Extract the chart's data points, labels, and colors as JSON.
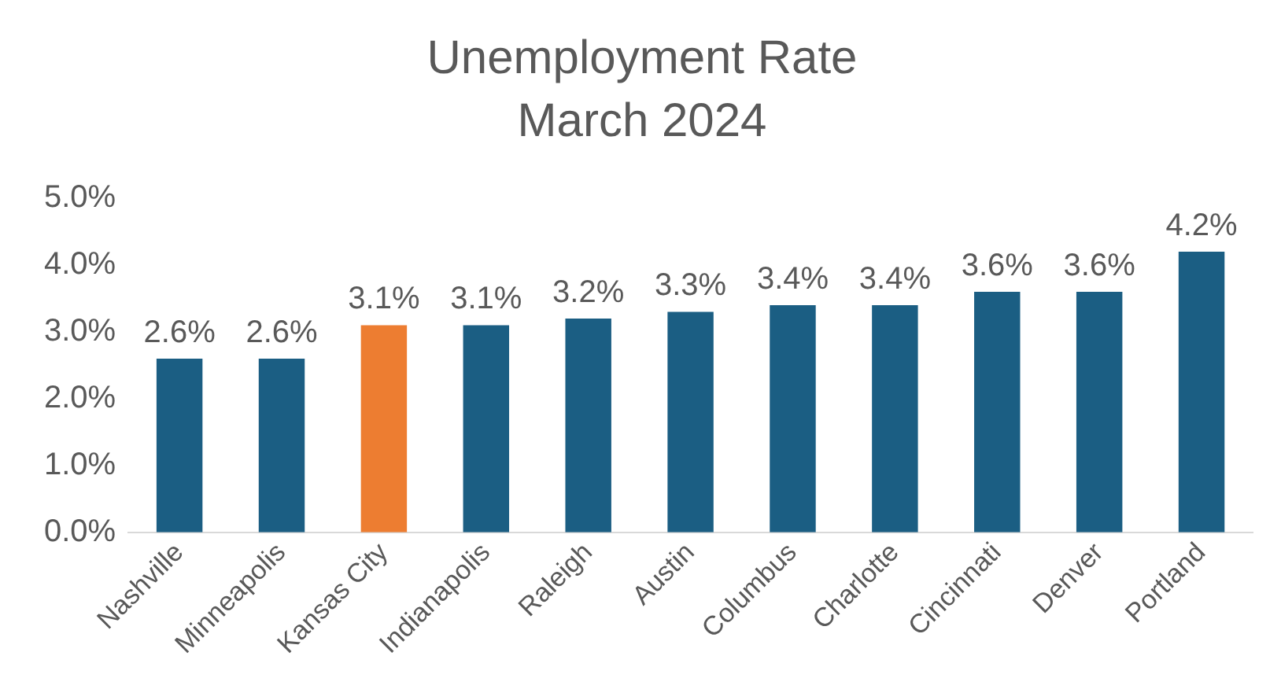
{
  "chart_data": {
    "type": "bar",
    "title": "Unemployment Rate",
    "subtitle": "March 2024",
    "categories": [
      "Nashville",
      "Minneapolis",
      "Kansas City",
      "Indianapolis",
      "Raleigh",
      "Austin",
      "Columbus",
      "Charlotte",
      "Cincinnati",
      "Denver",
      "Portland"
    ],
    "values": [
      2.6,
      2.6,
      3.1,
      3.1,
      3.2,
      3.3,
      3.4,
      3.4,
      3.6,
      3.6,
      4.2
    ],
    "colors": [
      "#1b5e83",
      "#1b5e83",
      "#ed7d31",
      "#1b5e83",
      "#1b5e83",
      "#1b5e83",
      "#1b5e83",
      "#1b5e83",
      "#1b5e83",
      "#1b5e83",
      "#1b5e83"
    ],
    "value_labels": [
      "2.6%",
      "2.6%",
      "3.1%",
      "3.1%",
      "3.2%",
      "3.3%",
      "3.4%",
      "3.4%",
      "3.6%",
      "3.6%",
      "4.2%"
    ],
    "ylim": [
      0,
      5
    ],
    "yticks": [
      {
        "value": 0,
        "label": "0.0%"
      },
      {
        "value": 1,
        "label": "1.0%"
      },
      {
        "value": 2,
        "label": "2.0%"
      },
      {
        "value": 3,
        "label": "3.0%"
      },
      {
        "value": 4,
        "label": "4.0%"
      },
      {
        "value": 5,
        "label": "5.0%"
      }
    ],
    "grid": false,
    "legend": false
  }
}
